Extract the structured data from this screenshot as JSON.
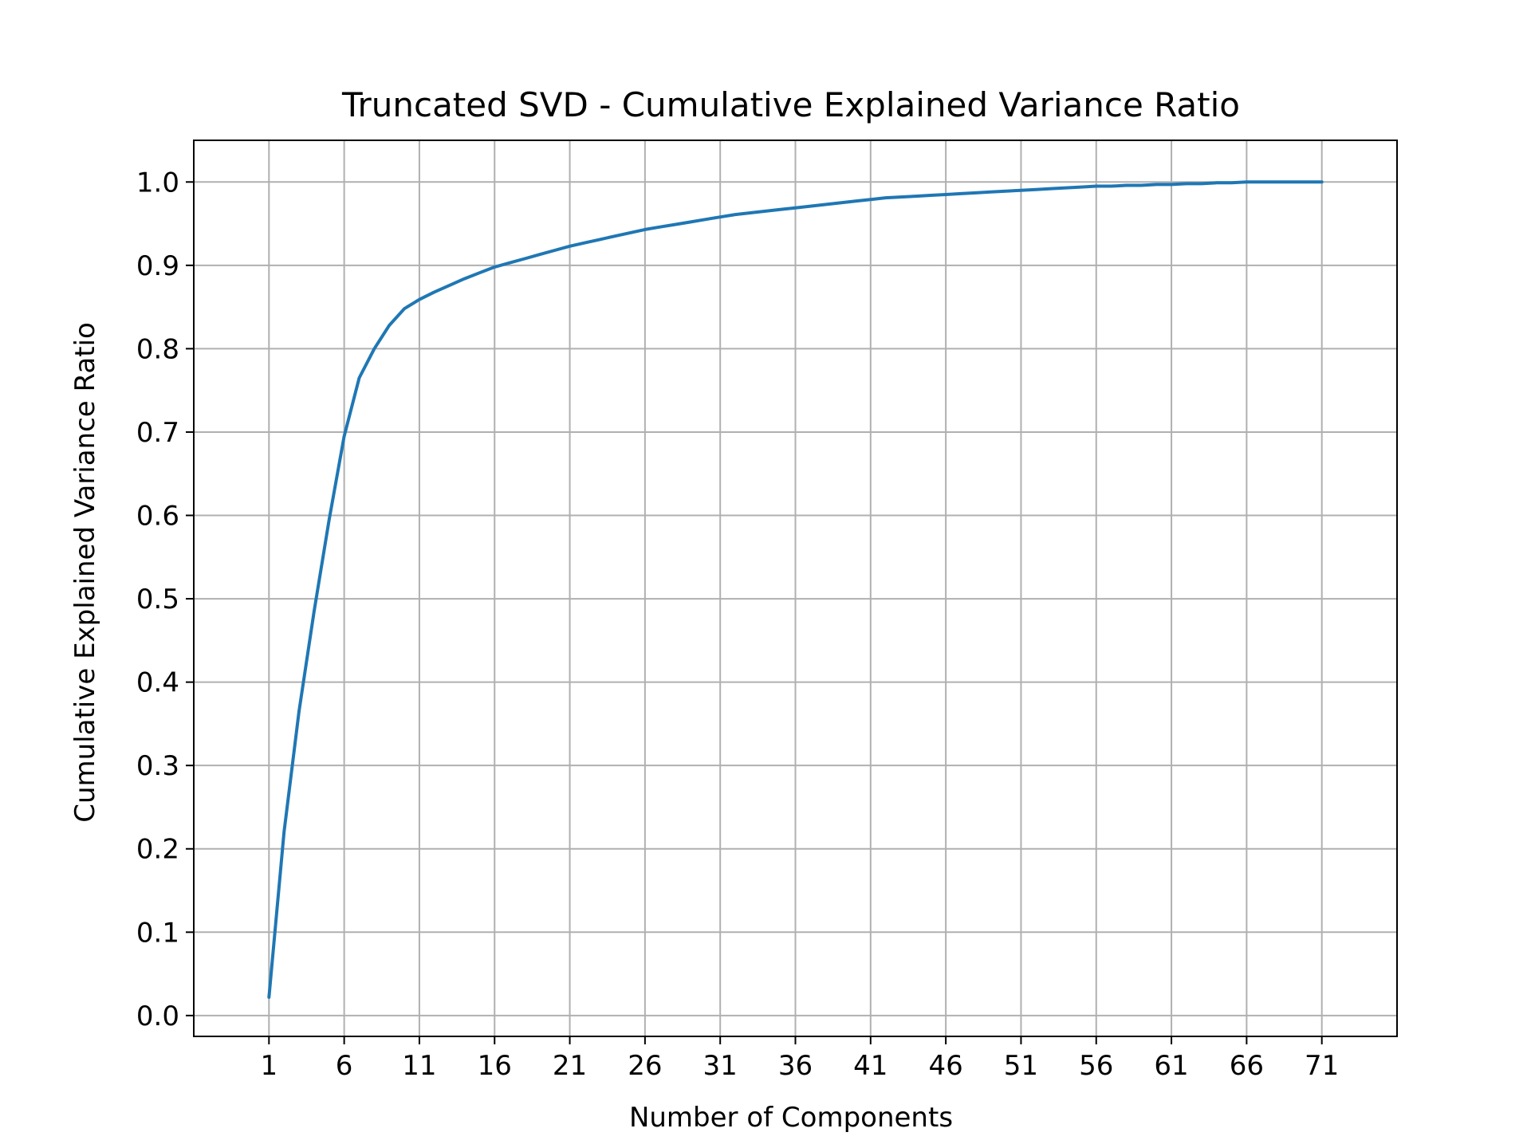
{
  "chart_data": {
    "type": "line",
    "title": "Truncated SVD - Cumulative Explained Variance Ratio",
    "xlabel": "Number of Components",
    "ylabel": "Cumulative Explained Variance Ratio",
    "xlim": [
      -4,
      76
    ],
    "ylim": [
      -0.025,
      1.05
    ],
    "xticks": [
      1,
      6,
      11,
      16,
      21,
      26,
      31,
      36,
      41,
      46,
      51,
      56,
      61,
      66,
      71
    ],
    "xtick_labels": [
      "1",
      "6",
      "11",
      "16",
      "21",
      "26",
      "31",
      "36",
      "41",
      "46",
      "51",
      "56",
      "61",
      "66",
      "71"
    ],
    "yticks": [
      0.0,
      0.1,
      0.2,
      0.3,
      0.4,
      0.5,
      0.6,
      0.7,
      0.8,
      0.9,
      1.0
    ],
    "ytick_labels": [
      "0.0",
      "0.1",
      "0.2",
      "0.3",
      "0.4",
      "0.5",
      "0.6",
      "0.7",
      "0.8",
      "0.9",
      "1.0"
    ],
    "grid": true,
    "line_color": "#1f77b4",
    "grid_color": "#b0b0b0",
    "series": [
      {
        "x": [
          1,
          2,
          3,
          4,
          5,
          6,
          7,
          8,
          9,
          10,
          11,
          12,
          13,
          14,
          15,
          16,
          17,
          18,
          19,
          20,
          21,
          22,
          23,
          24,
          25,
          26,
          27,
          28,
          29,
          30,
          31,
          32,
          33,
          34,
          35,
          36,
          37,
          38,
          39,
          40,
          41,
          42,
          43,
          44,
          45,
          46,
          47,
          48,
          49,
          50,
          51,
          52,
          53,
          54,
          55,
          56,
          57,
          58,
          59,
          60,
          61,
          62,
          63,
          64,
          65,
          66,
          67,
          68,
          69,
          70,
          71
        ],
        "values": [
          0.022,
          0.22,
          0.365,
          0.485,
          0.595,
          0.695,
          0.765,
          0.8,
          0.828,
          0.848,
          0.859,
          0.868,
          0.876,
          0.884,
          0.891,
          0.898,
          0.903,
          0.908,
          0.913,
          0.918,
          0.923,
          0.927,
          0.931,
          0.935,
          0.939,
          0.943,
          0.946,
          0.949,
          0.952,
          0.955,
          0.958,
          0.961,
          0.963,
          0.965,
          0.967,
          0.969,
          0.971,
          0.973,
          0.975,
          0.977,
          0.979,
          0.981,
          0.982,
          0.983,
          0.984,
          0.985,
          0.986,
          0.987,
          0.988,
          0.989,
          0.99,
          0.991,
          0.992,
          0.993,
          0.994,
          0.995,
          0.995,
          0.996,
          0.996,
          0.997,
          0.997,
          0.998,
          0.998,
          0.999,
          0.999,
          1.0,
          1.0,
          1.0,
          1.0,
          1.0,
          1.0
        ]
      }
    ]
  }
}
